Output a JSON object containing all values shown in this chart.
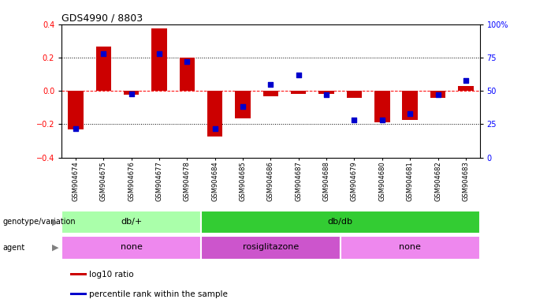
{
  "title": "GDS4990 / 8803",
  "samples": [
    "GSM904674",
    "GSM904675",
    "GSM904676",
    "GSM904677",
    "GSM904678",
    "GSM904684",
    "GSM904685",
    "GSM904686",
    "GSM904687",
    "GSM904688",
    "GSM904679",
    "GSM904680",
    "GSM904681",
    "GSM904682",
    "GSM904683"
  ],
  "log10_ratio": [
    -0.23,
    0.265,
    -0.025,
    0.375,
    0.2,
    -0.275,
    -0.165,
    -0.03,
    -0.02,
    -0.02,
    -0.04,
    -0.19,
    -0.175,
    -0.04,
    0.03
  ],
  "percentile_rank": [
    22,
    78,
    48,
    78,
    72,
    22,
    38,
    55,
    62,
    47,
    28,
    28,
    33,
    47,
    58
  ],
  "genotype_groups": [
    {
      "label": "db/+",
      "start": 0,
      "end": 5,
      "color": "#aaffaa"
    },
    {
      "label": "db/db",
      "start": 5,
      "end": 15,
      "color": "#33cc33"
    }
  ],
  "agent_groups": [
    {
      "label": "none",
      "start": 0,
      "end": 5,
      "color": "#ee88ee"
    },
    {
      "label": "rosiglitazone",
      "start": 5,
      "end": 10,
      "color": "#cc55cc"
    },
    {
      "label": "none",
      "start": 10,
      "end": 15,
      "color": "#ee88ee"
    }
  ],
  "ylim": [
    -0.4,
    0.4
  ],
  "right_ylim": [
    0,
    100
  ],
  "right_yticks": [
    0,
    25,
    50,
    75,
    100
  ],
  "right_yticklabels": [
    "0",
    "25",
    "50",
    "75",
    "100%"
  ],
  "left_yticks": [
    -0.4,
    -0.2,
    0.0,
    0.2,
    0.4
  ],
  "hlines_dotted": [
    -0.2,
    0.2
  ],
  "hline_red": 0.0,
  "bar_color": "#CC0000",
  "dot_color": "#0000CC",
  "bar_width": 0.55,
  "dot_size": 18,
  "background_color": "#FFFFFF"
}
